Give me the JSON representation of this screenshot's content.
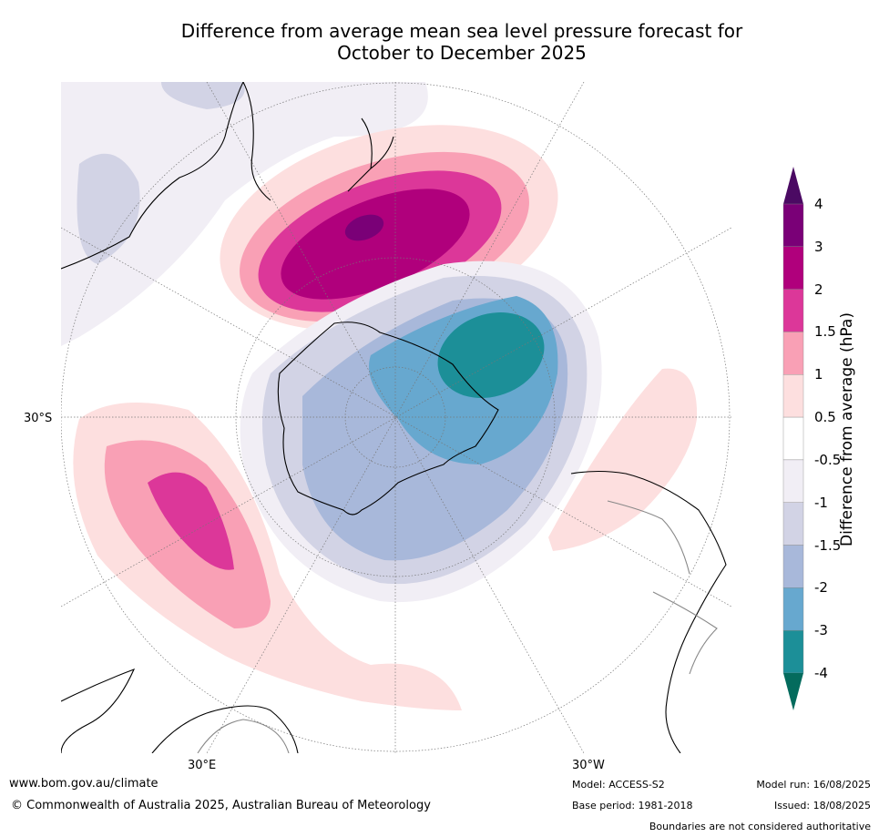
{
  "title_line1": "Difference from average mean sea level pressure forecast for",
  "title_line2": "October to December 2025",
  "map_labels": {
    "lat": "30°S",
    "lon_east": "30°E",
    "lon_west": "30°W"
  },
  "colorbar": {
    "label": "Difference from average (hPa)",
    "ticks": [
      "4",
      "3",
      "2",
      "1.5",
      "1",
      "0.5",
      "-0.5",
      "-1",
      "-1.5",
      "-2",
      "-3",
      "-4"
    ],
    "colors": {
      "gt4": "#4b0a63",
      "3_4": "#7a0077",
      "2_3": "#b0007c",
      "1.5_2": "#dc3799",
      "1_1.5": "#f9a0b5",
      "0.5_1": "#fddfdf",
      "n0.5_0.5": "#ffffff",
      "n1_n0.5": "#f1eef5",
      "n1.5_n1": "#d2d3e5",
      "n2_n1.5": "#a8b8da",
      "n3_n2": "#67a8cf",
      "n4_n3": "#1c8f98",
      "lt_n4": "#046b5d"
    }
  },
  "footer": {
    "url": "www.bom.gov.au/climate",
    "copyright": "© Commonwealth of Australia 2025, Australian Bureau of Meteorology",
    "model": "Model: ACCESS-S2",
    "base_period": "Base period: 1981-2018",
    "model_run": "Model run: 16/08/2025",
    "issued": "Issued: 18/08/2025",
    "disclaimer": "Boundaries are not considered authoritative"
  }
}
